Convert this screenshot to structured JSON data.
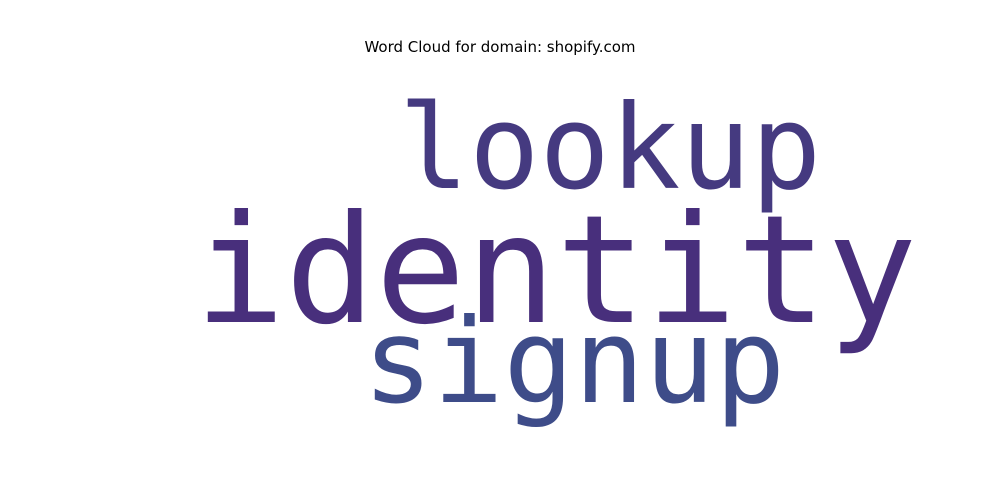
{
  "chart_data": {
    "type": "wordcloud",
    "title": "Word Cloud for domain: shopify.com",
    "words": [
      {
        "text": "identity",
        "weight": 1.0,
        "color": "#482f7c"
      },
      {
        "text": "lookup",
        "weight": 0.78,
        "color": "#453a80"
      },
      {
        "text": "signup",
        "weight": 0.78,
        "color": "#3e4c89"
      }
    ]
  }
}
